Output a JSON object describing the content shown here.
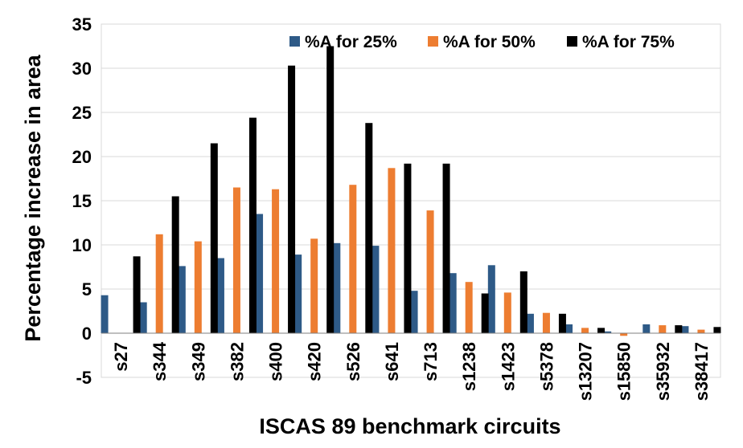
{
  "chart_data": {
    "type": "bar",
    "title": "",
    "xlabel": "ISCAS 89 benchmark circuits",
    "ylabel": "Percentage increase in area",
    "ylim": [
      -5,
      35
    ],
    "yticks": [
      -5,
      0,
      5,
      10,
      15,
      20,
      25,
      30,
      35
    ],
    "grid": "horizontal",
    "legend_position": "top-right",
    "categories": [
      "s27",
      "s344",
      "s349",
      "s382",
      "s400",
      "s420",
      "s526",
      "s641",
      "s713",
      "s1238",
      "s1423",
      "s5378",
      "s13207",
      "s15850",
      "s35932",
      "s38417"
    ],
    "series": [
      {
        "name": "%A for 25%",
        "color": "#2e5a87",
        "values": [
          4.3,
          3.5,
          7.6,
          8.5,
          13.5,
          8.9,
          10.2,
          9.9,
          4.8,
          6.8,
          7.7,
          2.2,
          1.0,
          0.2,
          1.0,
          0.8
        ]
      },
      {
        "name": "%A for 50%",
        "color": "#ed7d31",
        "values": [
          0.0,
          11.2,
          10.4,
          16.5,
          16.3,
          10.7,
          16.8,
          18.7,
          13.9,
          5.8,
          4.6,
          2.3,
          0.6,
          -0.3,
          0.9,
          0.4
        ]
      },
      {
        "name": "%A for 75%",
        "color": "#000000",
        "values": [
          8.7,
          15.5,
          21.5,
          24.4,
          30.3,
          32.5,
          23.8,
          19.2,
          19.2,
          4.5,
          7.0,
          2.2,
          0.6,
          0.0,
          0.9,
          0.7
        ]
      }
    ]
  }
}
